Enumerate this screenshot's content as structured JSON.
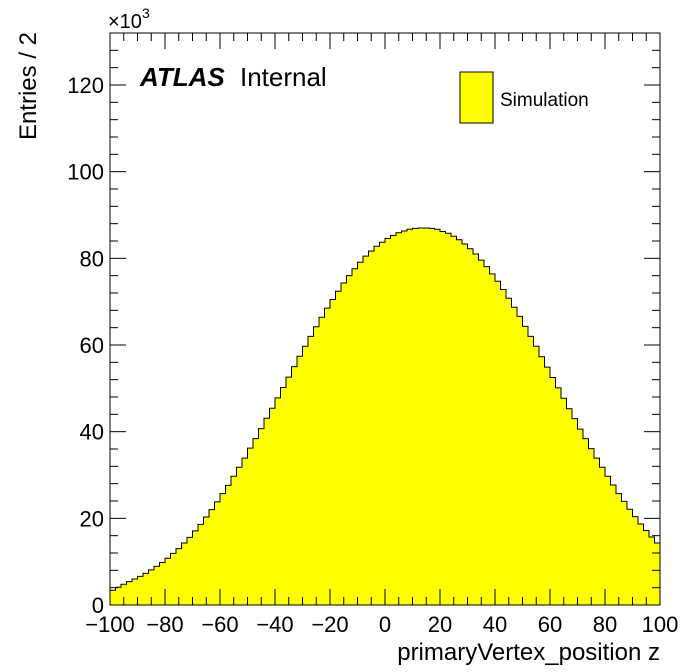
{
  "chart_data": {
    "type": "bar",
    "histogram": true,
    "xlabel": "primaryVertex_position z",
    "ylabel": "Entries / 2",
    "y_multiplier": "×10",
    "y_multiplier_exponent": "3",
    "xlim": [
      -100,
      100
    ],
    "ylim": [
      0,
      132
    ],
    "bin_width": 2,
    "fill_color": "#ffff00",
    "line_color": "#000000",
    "legend": {
      "label": "Simulation",
      "position": "top-right"
    },
    "annotation": {
      "experiment": "ATLAS",
      "status": "Internal"
    },
    "x_ticks": [
      "−100",
      "−80",
      "−60",
      "−40",
      "−20",
      "0",
      "20",
      "40",
      "60",
      "80",
      "100"
    ],
    "y_ticks": [
      "0",
      "20",
      "40",
      "60",
      "80",
      "100",
      "120"
    ],
    "x_tick_values": [
      -100,
      -80,
      -60,
      -40,
      -20,
      0,
      20,
      40,
      60,
      80,
      100
    ],
    "y_tick_values": [
      0,
      20,
      40,
      60,
      80,
      100,
      120
    ],
    "values": [
      3.4,
      4.1,
      4.8,
      5.4,
      6.0,
      6.6,
      7.3,
      8.1,
      8.9,
      9.8,
      10.8,
      11.9,
      13.0,
      14.3,
      15.6,
      17.1,
      18.6,
      20.3,
      22.0,
      23.8,
      25.7,
      27.6,
      29.7,
      31.8,
      33.9,
      36.2,
      38.4,
      40.7,
      43.1,
      45.4,
      47.8,
      50.2,
      52.6,
      55.0,
      57.4,
      59.7,
      62.0,
      64.2,
      66.4,
      68.5,
      70.5,
      72.4,
      74.3,
      76.0,
      77.6,
      79.1,
      80.5,
      81.7,
      82.8,
      83.7,
      84.6,
      85.3,
      85.9,
      86.3,
      86.7,
      86.9,
      87.0,
      87.0,
      86.9,
      86.7,
      86.2,
      85.8,
      85.1,
      84.3,
      83.3,
      82.2,
      81.0,
      79.6,
      78.1,
      76.4,
      74.7,
      72.8,
      70.8,
      68.7,
      66.6,
      64.3,
      62.0,
      59.7,
      57.3,
      54.9,
      52.5,
      50.1,
      47.7,
      45.3,
      43.0,
      40.6,
      38.4,
      36.1,
      33.9,
      31.8,
      29.7,
      27.7,
      25.7,
      23.9,
      22.1,
      20.4,
      18.7,
      17.2,
      15.7,
      14.3
    ]
  }
}
